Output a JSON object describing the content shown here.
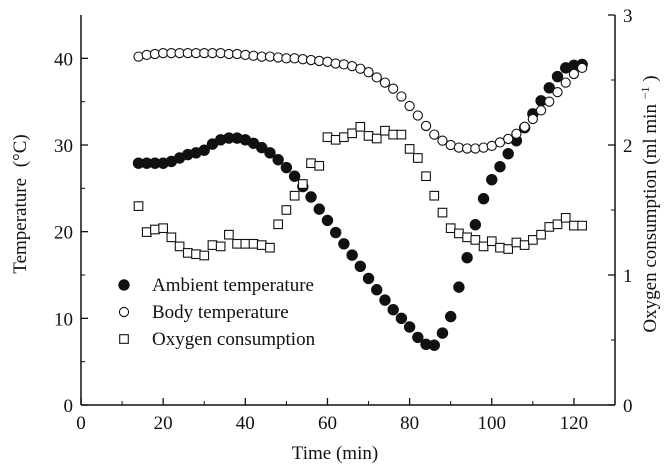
{
  "chart_data": {
    "type": "scatter",
    "title": "",
    "xlabel": "Time (min)",
    "ylabel_left": "Temperature",
    "ylabel_left_unit": "(°C)",
    "ylabel_right": "Oxygen consumption (ml min",
    "ylabel_right_sup": "−1",
    "ylabel_right_close": ")",
    "xlim": [
      0,
      130
    ],
    "ylim_left": [
      0,
      45
    ],
    "ylim_right": [
      0,
      3
    ],
    "x_ticks": [
      0,
      20,
      40,
      60,
      80,
      100,
      120
    ],
    "y_left_ticks": [
      0,
      10,
      20,
      30,
      40
    ],
    "y_right_ticks": [
      0,
      1,
      2,
      3
    ],
    "grid": false,
    "legend": {
      "position": "bottom-left"
    },
    "series": [
      {
        "name": "Ambient temperature",
        "axis": "left",
        "marker": "filled-circle",
        "points": [
          [
            14,
            27.9
          ],
          [
            16,
            27.9
          ],
          [
            18,
            27.9
          ],
          [
            20,
            27.9
          ],
          [
            22,
            28.1
          ],
          [
            24,
            28.5
          ],
          [
            26,
            28.9
          ],
          [
            28,
            29.1
          ],
          [
            30,
            29.4
          ],
          [
            32,
            30.1
          ],
          [
            34,
            30.6
          ],
          [
            36,
            30.8
          ],
          [
            38,
            30.8
          ],
          [
            40,
            30.6
          ],
          [
            42,
            30.2
          ],
          [
            44,
            29.7
          ],
          [
            46,
            29.1
          ],
          [
            48,
            28.3
          ],
          [
            50,
            27.4
          ],
          [
            52,
            26.4
          ],
          [
            54,
            25.2
          ],
          [
            56,
            24.0
          ],
          [
            58,
            22.6
          ],
          [
            60,
            21.3
          ],
          [
            62,
            19.9
          ],
          [
            64,
            18.6
          ],
          [
            66,
            17.3
          ],
          [
            68,
            16.0
          ],
          [
            70,
            14.6
          ],
          [
            72,
            13.3
          ],
          [
            74,
            12.1
          ],
          [
            76,
            11.0
          ],
          [
            78,
            10.0
          ],
          [
            80,
            9.0
          ],
          [
            82,
            7.8
          ],
          [
            84,
            7.0
          ],
          [
            86,
            6.9
          ],
          [
            88,
            8.3
          ],
          [
            90,
            10.2
          ],
          [
            92,
            13.6
          ],
          [
            94,
            17.0
          ],
          [
            96,
            20.8
          ],
          [
            98,
            23.8
          ],
          [
            100,
            26.0
          ],
          [
            102,
            27.5
          ],
          [
            104,
            29.0
          ],
          [
            106,
            30.5
          ],
          [
            108,
            32.0
          ],
          [
            110,
            33.6
          ],
          [
            112,
            35.1
          ],
          [
            114,
            36.6
          ],
          [
            116,
            37.9
          ],
          [
            118,
            38.9
          ],
          [
            120,
            39.2
          ],
          [
            122,
            39.3
          ]
        ]
      },
      {
        "name": "Body temperature",
        "axis": "left",
        "marker": "open-circle",
        "points": [
          [
            14,
            40.2
          ],
          [
            16,
            40.4
          ],
          [
            18,
            40.5
          ],
          [
            20,
            40.6
          ],
          [
            22,
            40.6
          ],
          [
            24,
            40.6
          ],
          [
            26,
            40.6
          ],
          [
            28,
            40.6
          ],
          [
            30,
            40.6
          ],
          [
            32,
            40.6
          ],
          [
            34,
            40.6
          ],
          [
            36,
            40.5
          ],
          [
            38,
            40.5
          ],
          [
            40,
            40.4
          ],
          [
            42,
            40.3
          ],
          [
            44,
            40.2
          ],
          [
            46,
            40.2
          ],
          [
            48,
            40.1
          ],
          [
            50,
            40.0
          ],
          [
            52,
            40.0
          ],
          [
            54,
            39.9
          ],
          [
            56,
            39.8
          ],
          [
            58,
            39.7
          ],
          [
            60,
            39.6
          ],
          [
            62,
            39.4
          ],
          [
            64,
            39.3
          ],
          [
            66,
            39.1
          ],
          [
            68,
            38.8
          ],
          [
            70,
            38.4
          ],
          [
            72,
            37.8
          ],
          [
            74,
            37.2
          ],
          [
            76,
            36.5
          ],
          [
            78,
            35.6
          ],
          [
            80,
            34.5
          ],
          [
            82,
            33.4
          ],
          [
            84,
            32.2
          ],
          [
            86,
            31.2
          ],
          [
            88,
            30.5
          ],
          [
            90,
            30.0
          ],
          [
            92,
            29.7
          ],
          [
            94,
            29.6
          ],
          [
            96,
            29.6
          ],
          [
            98,
            29.7
          ],
          [
            100,
            29.9
          ],
          [
            102,
            30.3
          ],
          [
            104,
            30.7
          ],
          [
            106,
            31.3
          ],
          [
            108,
            32.1
          ],
          [
            110,
            33.0
          ],
          [
            112,
            34.0
          ],
          [
            114,
            35.0
          ],
          [
            116,
            36.1
          ],
          [
            118,
            37.2
          ],
          [
            120,
            38.2
          ],
          [
            122,
            38.9
          ]
        ]
      },
      {
        "name": "Oxygen consumption",
        "axis": "right",
        "marker": "open-square",
        "points": [
          [
            14,
            1.53
          ],
          [
            16,
            1.33
          ],
          [
            18,
            1.35
          ],
          [
            20,
            1.36
          ],
          [
            22,
            1.29
          ],
          [
            24,
            1.22
          ],
          [
            26,
            1.17
          ],
          [
            28,
            1.16
          ],
          [
            30,
            1.15
          ],
          [
            32,
            1.23
          ],
          [
            34,
            1.22
          ],
          [
            36,
            1.31
          ],
          [
            38,
            1.24
          ],
          [
            40,
            1.24
          ],
          [
            42,
            1.24
          ],
          [
            44,
            1.23
          ],
          [
            46,
            1.21
          ],
          [
            48,
            1.39
          ],
          [
            50,
            1.5
          ],
          [
            52,
            1.61
          ],
          [
            54,
            1.7
          ],
          [
            56,
            1.86
          ],
          [
            58,
            1.84
          ],
          [
            60,
            2.06
          ],
          [
            62,
            2.04
          ],
          [
            64,
            2.06
          ],
          [
            66,
            2.09
          ],
          [
            68,
            2.14
          ],
          [
            70,
            2.07
          ],
          [
            72,
            2.05
          ],
          [
            74,
            2.11
          ],
          [
            76,
            2.08
          ],
          [
            78,
            2.08
          ],
          [
            80,
            1.97
          ],
          [
            82,
            1.9
          ],
          [
            84,
            1.76
          ],
          [
            86,
            1.61
          ],
          [
            88,
            1.48
          ],
          [
            90,
            1.36
          ],
          [
            92,
            1.32
          ],
          [
            94,
            1.29
          ],
          [
            96,
            1.27
          ],
          [
            98,
            1.22
          ],
          [
            100,
            1.26
          ],
          [
            102,
            1.21
          ],
          [
            104,
            1.2
          ],
          [
            106,
            1.25
          ],
          [
            108,
            1.23
          ],
          [
            110,
            1.27
          ],
          [
            112,
            1.31
          ],
          [
            114,
            1.37
          ],
          [
            116,
            1.39
          ],
          [
            118,
            1.44
          ],
          [
            120,
            1.38
          ],
          [
            122,
            1.38
          ]
        ]
      }
    ]
  }
}
